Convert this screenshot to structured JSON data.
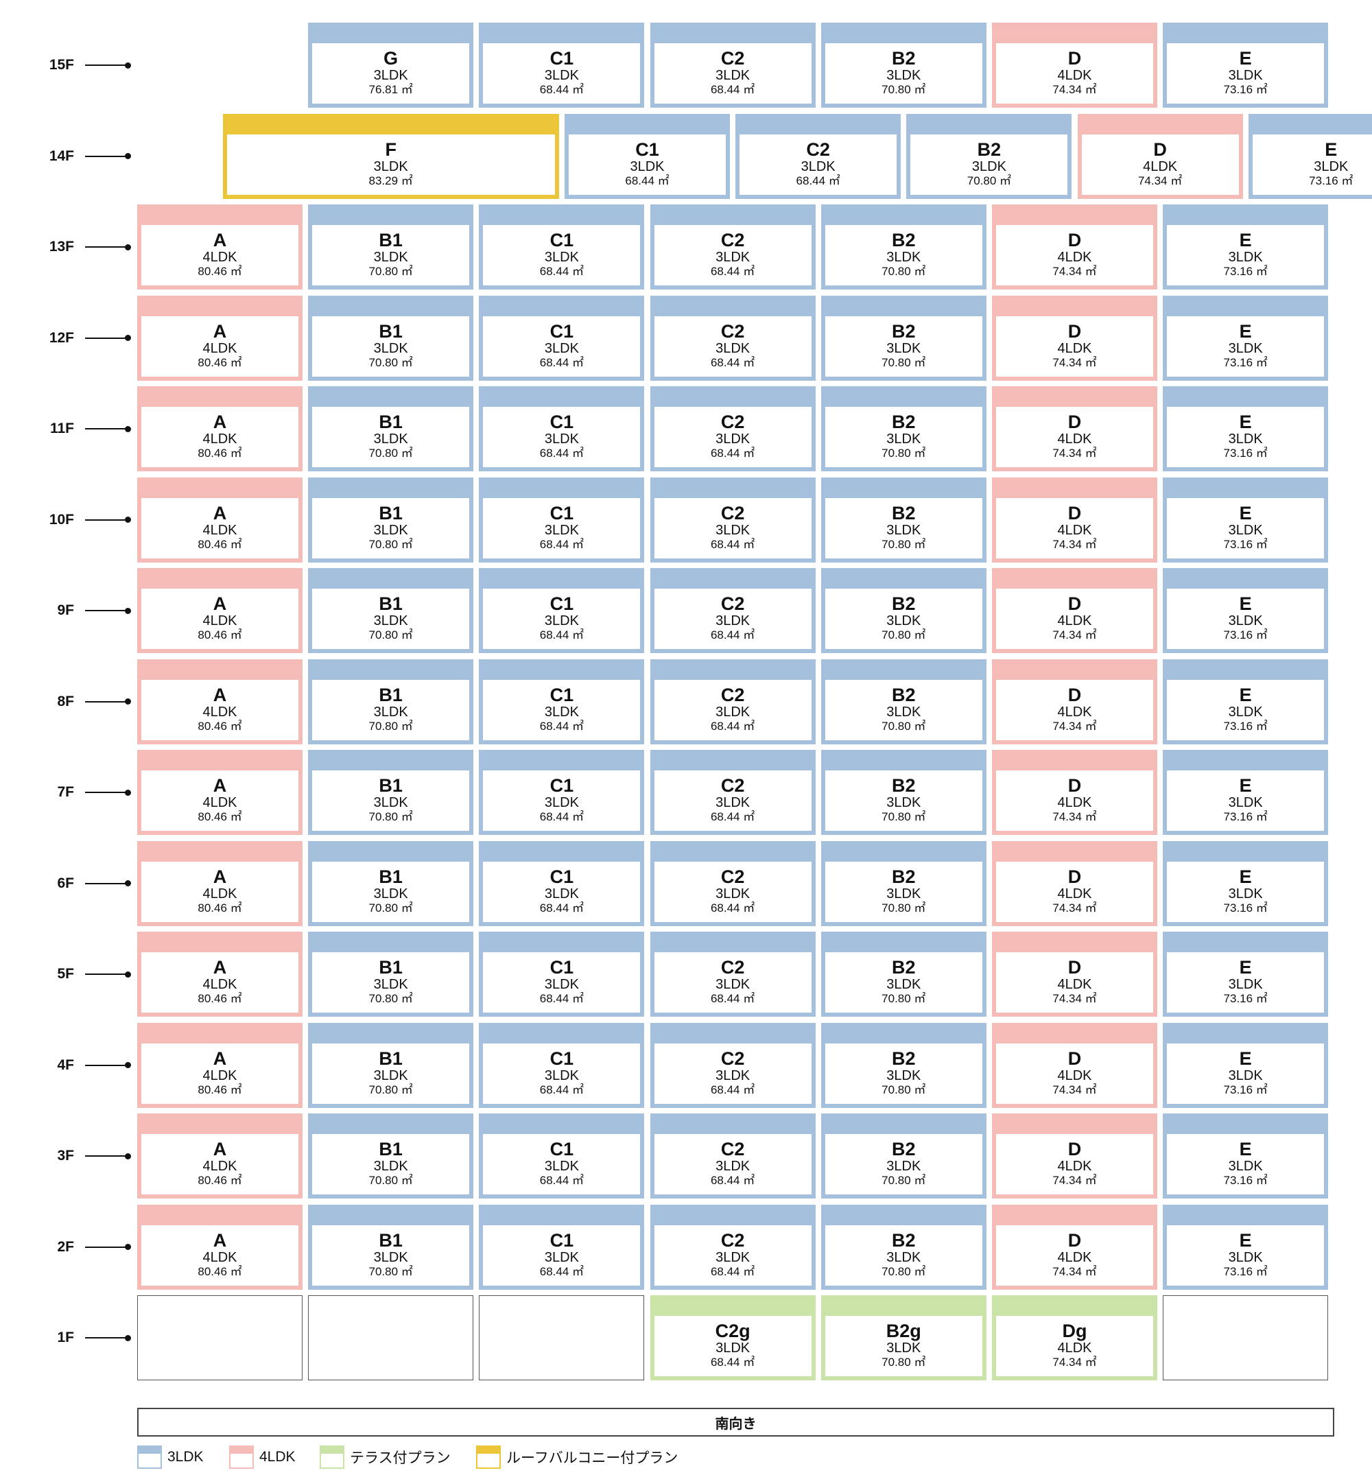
{
  "colors": {
    "3LDK": "#a4c0dc",
    "4LDK": "#f5bcb7",
    "terrace": "#cae3a6",
    "roof_balcony": "#ecc538"
  },
  "columns": [
    "A",
    "B1",
    "C1",
    "C2",
    "B2",
    "D",
    "E"
  ],
  "floors": [
    {
      "label": "15F",
      "units": [
        null,
        {
          "name": "G",
          "type": "3LDK",
          "area": "76.81 ㎡",
          "category": "3LDK"
        },
        {
          "name": "C1",
          "type": "3LDK",
          "area": "68.44 ㎡",
          "category": "3LDK"
        },
        {
          "name": "C2",
          "type": "3LDK",
          "area": "68.44 ㎡",
          "category": "3LDK"
        },
        {
          "name": "B2",
          "type": "3LDK",
          "area": "70.80 ㎡",
          "category": "3LDK"
        },
        {
          "name": "D",
          "type": "4LDK",
          "area": "74.34 ㎡",
          "category": "4LDK"
        },
        {
          "name": "E",
          "type": "3LDK",
          "area": "73.16 ㎡",
          "category": "3LDK"
        }
      ]
    },
    {
      "label": "14F",
      "units": [
        {
          "name": "F",
          "type": "3LDK",
          "area": "83.29 ㎡",
          "category": "roof_balcony",
          "span": 2,
          "offset": 0.5
        },
        {
          "name": "C1",
          "type": "3LDK",
          "area": "68.44 ㎡",
          "category": "3LDK"
        },
        {
          "name": "C2",
          "type": "3LDK",
          "area": "68.44 ㎡",
          "category": "3LDK"
        },
        {
          "name": "B2",
          "type": "3LDK",
          "area": "70.80 ㎡",
          "category": "3LDK"
        },
        {
          "name": "D",
          "type": "4LDK",
          "area": "74.34 ㎡",
          "category": "4LDK"
        },
        {
          "name": "E",
          "type": "3LDK",
          "area": "73.16 ㎡",
          "category": "3LDK"
        }
      ]
    },
    {
      "label": "13F",
      "units": "standard"
    },
    {
      "label": "12F",
      "units": "standard"
    },
    {
      "label": "11F",
      "units": "standard"
    },
    {
      "label": "10F",
      "units": "standard"
    },
    {
      "label": "9F",
      "units": "standard"
    },
    {
      "label": "8F",
      "units": "standard"
    },
    {
      "label": "7F",
      "units": "standard"
    },
    {
      "label": "6F",
      "units": "standard"
    },
    {
      "label": "5F",
      "units": "standard"
    },
    {
      "label": "4F",
      "units": "standard"
    },
    {
      "label": "3F",
      "units": "standard"
    },
    {
      "label": "2F",
      "units": "standard"
    },
    {
      "label": "1F",
      "units": [
        {
          "empty": true
        },
        {
          "empty": true
        },
        {
          "empty": true
        },
        {
          "name": "C2g",
          "type": "3LDK",
          "area": "68.44 ㎡",
          "category": "terrace"
        },
        {
          "name": "B2g",
          "type": "3LDK",
          "area": "70.80 ㎡",
          "category": "terrace"
        },
        {
          "name": "Dg",
          "type": "4LDK",
          "area": "74.34 ㎡",
          "category": "terrace"
        },
        {
          "empty": true
        }
      ]
    }
  ],
  "standard_units": [
    {
      "name": "A",
      "type": "4LDK",
      "area": "80.46 ㎡",
      "category": "4LDK"
    },
    {
      "name": "B1",
      "type": "3LDK",
      "area": "70.80 ㎡",
      "category": "3LDK"
    },
    {
      "name": "C1",
      "type": "3LDK",
      "area": "68.44 ㎡",
      "category": "3LDK"
    },
    {
      "name": "C2",
      "type": "3LDK",
      "area": "68.44 ㎡",
      "category": "3LDK"
    },
    {
      "name": "B2",
      "type": "3LDK",
      "area": "70.80 ㎡",
      "category": "3LDK"
    },
    {
      "name": "D",
      "type": "4LDK",
      "area": "74.34 ㎡",
      "category": "4LDK"
    },
    {
      "name": "E",
      "type": "3LDK",
      "area": "73.16 ㎡",
      "category": "3LDK"
    }
  ],
  "direction_label": "南向き",
  "legend": [
    {
      "label": "3LDK",
      "color": "#a4c0dc"
    },
    {
      "label": "4LDK",
      "color": "#f5bcb7"
    },
    {
      "label": "テラス付プラン",
      "color": "#cae3a6"
    },
    {
      "label": "ルーフバルコニー付プラン",
      "color": "#ecc538"
    }
  ]
}
